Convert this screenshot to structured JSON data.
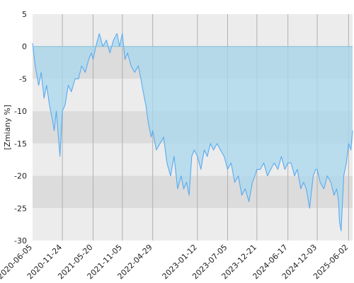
{
  "chart_data": {
    "type": "line",
    "title": "",
    "xlabel": "",
    "ylabel": "[Zmiany %]",
    "ylim": [
      -30,
      5
    ],
    "xlim": [
      "2020-06-05",
      "2025-06-25"
    ],
    "grid": true,
    "band_colors": [
      "#ececec",
      "#dcdcdc"
    ],
    "y_ticks": [
      5,
      0,
      -5,
      -10,
      -15,
      -20,
      -25,
      -30
    ],
    "x_ticks": [
      "2020-06-05",
      "2020-11-24",
      "2021-05-20",
      "2021-11-05",
      "2022-04-29",
      "2023-01-12",
      "2023-07-05",
      "2023-12-21",
      "2024-06-17",
      "2024-12-03",
      "2025-06-02"
    ],
    "colors": {
      "line": "#5aaaf0",
      "fill": "#a8d8ee"
    },
    "series": [
      {
        "x": [
          "2020-06-05",
          "2020-06-20",
          "2020-07-10",
          "2020-07-25",
          "2020-08-10",
          "2020-08-25",
          "2020-09-10",
          "2020-09-25",
          "2020-10-08",
          "2020-10-20",
          "2020-11-01",
          "2020-11-10",
          "2020-11-24",
          "2020-12-10",
          "2020-12-28",
          "2021-01-15",
          "2021-02-05",
          "2021-02-25",
          "2021-03-15",
          "2021-04-05",
          "2021-04-25",
          "2021-05-10",
          "2021-05-20",
          "2021-06-05",
          "2021-06-25",
          "2021-07-15",
          "2021-08-05",
          "2021-08-25",
          "2021-09-15",
          "2021-10-05",
          "2021-10-20",
          "2021-11-05",
          "2021-11-20",
          "2021-12-05",
          "2021-12-25",
          "2022-01-15",
          "2022-02-05",
          "2022-02-20",
          "2022-03-05",
          "2022-03-20",
          "2022-04-05",
          "2022-04-20",
          "2022-04-29",
          "2022-05-20",
          "2022-06-10",
          "2022-07-01",
          "2022-07-20",
          "2022-08-10",
          "2022-08-30",
          "2022-09-20",
          "2022-10-10",
          "2022-10-25",
          "2022-11-10",
          "2022-11-25",
          "2022-12-10",
          "2022-12-25",
          "2023-01-12",
          "2023-02-01",
          "2023-02-20",
          "2023-03-10",
          "2023-03-28",
          "2023-04-15",
          "2023-05-05",
          "2023-05-25",
          "2023-06-15",
          "2023-07-05",
          "2023-07-25",
          "2023-08-15",
          "2023-09-05",
          "2023-09-25",
          "2023-10-15",
          "2023-11-05",
          "2023-11-25",
          "2023-12-10",
          "2023-12-21",
          "2024-01-10",
          "2024-01-30",
          "2024-02-20",
          "2024-03-10",
          "2024-03-30",
          "2024-04-20",
          "2024-05-10",
          "2024-05-30",
          "2024-06-17",
          "2024-07-05",
          "2024-07-25",
          "2024-08-10",
          "2024-08-30",
          "2024-09-15",
          "2024-10-01",
          "2024-10-20",
          "2024-11-10",
          "2024-11-25",
          "2024-12-03",
          "2024-12-20",
          "2025-01-10",
          "2025-01-30",
          "2025-02-20",
          "2025-03-10",
          "2025-03-25",
          "2025-04-05",
          "2025-04-10",
          "2025-04-20",
          "2025-05-05",
          "2025-05-20",
          "2025-06-02",
          "2025-06-15",
          "2025-06-25"
        ],
        "y": [
          0.5,
          -3,
          -6,
          -4,
          -8,
          -6,
          -9,
          -11,
          -13,
          -10,
          -14,
          -17,
          -10,
          -9,
          -6,
          -7,
          -5,
          -5,
          -3,
          -4,
          -2,
          -1,
          -2,
          0,
          2,
          0,
          1,
          -1,
          1,
          2,
          0,
          2,
          -2,
          -1,
          -3,
          -4,
          -3,
          -5,
          -7,
          -9,
          -12,
          -14,
          -13,
          -16,
          -15,
          -14,
          -18,
          -20,
          -17,
          -22,
          -20,
          -22,
          -21,
          -23,
          -17,
          -16,
          -17,
          -19,
          -16,
          -17,
          -15,
          -16,
          -15,
          -16,
          -17,
          -19,
          -18,
          -21,
          -20,
          -23,
          -22,
          -24,
          -21,
          -20,
          -19,
          -19,
          -18,
          -20,
          -19,
          -18,
          -19,
          -17,
          -19,
          -18,
          -18,
          -20,
          -19,
          -22,
          -21,
          -22,
          -25,
          -20,
          -19,
          -19,
          -21,
          -22,
          -20,
          -21,
          -23,
          -22,
          -24,
          -27,
          -28.5,
          -20,
          -18,
          -15,
          -16,
          -13
        ]
      }
    ]
  }
}
